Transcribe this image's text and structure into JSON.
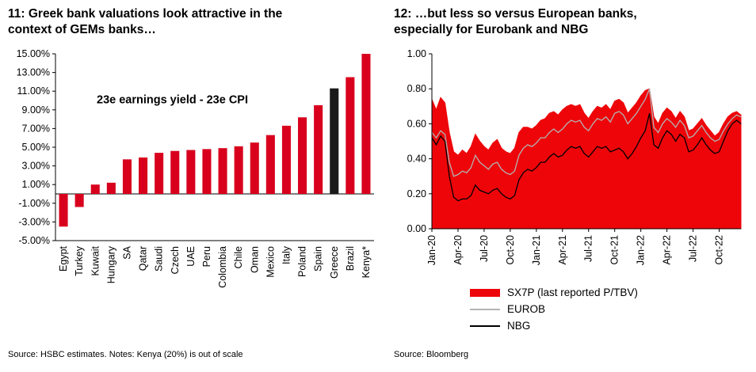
{
  "left_panel": {
    "title_lines": [
      "11: Greek bank valuations look attractive in the",
      "context of GEMs banks…"
    ],
    "source": "Source: HSBC estimates. Notes: Kenya (20%) is out of scale"
  },
  "right_panel": {
    "title_lines": [
      "12: …but less so versus European banks,",
      "especially for Eurobank and NBG"
    ],
    "source": "Source: Bloomberg",
    "legend": [
      {
        "label": "SX7P (last reported P/TBV)",
        "color": "#ee0509",
        "style": "area"
      },
      {
        "label": "EUROB",
        "color": "#b3b3b3",
        "style": "line"
      },
      {
        "label": "NBG",
        "color": "#000000",
        "style": "line"
      }
    ]
  },
  "chart_data": [
    {
      "type": "bar",
      "title": "11: Greek bank valuations look attractive in the context of GEMs banks…",
      "annotation": "23e earnings yield - 23e CPI",
      "categories": [
        "Egypt",
        "Turkey",
        "Kuwait",
        "Hungary",
        "SA",
        "Qatar",
        "Saudi",
        "Czech",
        "UAE",
        "Peru",
        "Colombia",
        "Chile",
        "Oman",
        "Mexico",
        "Italy",
        "Poland",
        "Spain",
        "Greece",
        "Brazil",
        "Kenya*"
      ],
      "values": [
        -3.5,
        -1.4,
        1.0,
        1.2,
        3.7,
        3.9,
        4.4,
        4.6,
        4.7,
        4.8,
        4.9,
        5.1,
        5.5,
        6.3,
        7.3,
        8.2,
        9.5,
        11.3,
        12.5,
        15.0
      ],
      "highlight_category": "Greece",
      "bar_color": "#d8001d",
      "highlight_color": "#1a1a1a",
      "ylim": [
        -5,
        15
      ],
      "ytick_values": [
        15,
        13,
        11,
        9,
        7,
        5,
        3,
        1,
        -1,
        -3,
        -5
      ],
      "yticks": [
        "15.00%",
        "13.00%",
        "11.00%",
        "9.00%",
        "7.00%",
        "5.00%",
        "3.00%",
        "1.00%",
        "-1.00%",
        "-3.00%",
        "-5.00%"
      ],
      "grid": false,
      "legend_position": "none"
    },
    {
      "type": "area",
      "title": "12: …but less so versus European banks, especially for Eurobank and NBG",
      "ylim": [
        0,
        1
      ],
      "ytick_values": [
        1.0,
        0.8,
        0.6,
        0.4,
        0.2,
        0.0
      ],
      "yticks": [
        "1.00",
        "0.80",
        "0.60",
        "0.40",
        "0.20",
        "0.00"
      ],
      "x_ticks": [
        "Jan-20",
        "Apr-20",
        "Jul-20",
        "Oct-20",
        "Jan-21",
        "Apr-21",
        "Jul-21",
        "Oct-21",
        "Jan-22",
        "Apr-22",
        "Jul-22",
        "Oct-22"
      ],
      "xtick_indices": [
        0,
        6,
        12,
        18,
        24,
        30,
        36,
        42,
        48,
        54,
        60,
        66
      ],
      "grid": false,
      "legend_position": "bottom",
      "series": [
        {
          "name": "SX7P (last reported P/TBV)",
          "style": "area",
          "color": "#ee0509",
          "values": [
            0.74,
            0.68,
            0.75,
            0.72,
            0.55,
            0.44,
            0.42,
            0.45,
            0.43,
            0.47,
            0.54,
            0.5,
            0.47,
            0.45,
            0.49,
            0.51,
            0.46,
            0.44,
            0.43,
            0.46,
            0.55,
            0.58,
            0.58,
            0.57,
            0.59,
            0.62,
            0.63,
            0.66,
            0.67,
            0.65,
            0.68,
            0.7,
            0.71,
            0.7,
            0.71,
            0.66,
            0.63,
            0.67,
            0.7,
            0.69,
            0.71,
            0.68,
            0.73,
            0.74,
            0.72,
            0.66,
            0.69,
            0.72,
            0.76,
            0.79,
            0.8,
            0.64,
            0.6,
            0.66,
            0.69,
            0.67,
            0.63,
            0.67,
            0.64,
            0.56,
            0.57,
            0.6,
            0.63,
            0.59,
            0.56,
            0.53,
            0.55,
            0.6,
            0.64,
            0.66,
            0.67,
            0.65
          ]
        },
        {
          "name": "EUROB",
          "style": "line",
          "color": "#b3b3b3",
          "values": [
            0.55,
            0.52,
            0.56,
            0.54,
            0.38,
            0.3,
            0.31,
            0.33,
            0.32,
            0.35,
            0.42,
            0.38,
            0.36,
            0.34,
            0.37,
            0.38,
            0.34,
            0.32,
            0.31,
            0.33,
            0.42,
            0.46,
            0.48,
            0.47,
            0.49,
            0.52,
            0.52,
            0.55,
            0.57,
            0.55,
            0.57,
            0.6,
            0.62,
            0.61,
            0.62,
            0.58,
            0.56,
            0.6,
            0.63,
            0.62,
            0.64,
            0.61,
            0.66,
            0.67,
            0.65,
            0.6,
            0.63,
            0.66,
            0.7,
            0.74,
            0.8,
            0.58,
            0.55,
            0.6,
            0.63,
            0.61,
            0.58,
            0.62,
            0.59,
            0.52,
            0.53,
            0.56,
            0.59,
            0.55,
            0.52,
            0.5,
            0.51,
            0.56,
            0.6,
            0.63,
            0.65,
            0.64
          ]
        },
        {
          "name": "NBG",
          "style": "line",
          "color": "#000000",
          "values": [
            0.52,
            0.48,
            0.53,
            0.5,
            0.3,
            0.18,
            0.16,
            0.17,
            0.17,
            0.19,
            0.25,
            0.22,
            0.21,
            0.2,
            0.22,
            0.23,
            0.2,
            0.18,
            0.17,
            0.19,
            0.28,
            0.32,
            0.34,
            0.33,
            0.35,
            0.38,
            0.38,
            0.41,
            0.43,
            0.41,
            0.42,
            0.45,
            0.47,
            0.46,
            0.47,
            0.43,
            0.41,
            0.44,
            0.47,
            0.46,
            0.47,
            0.44,
            0.45,
            0.46,
            0.44,
            0.4,
            0.43,
            0.47,
            0.52,
            0.56,
            0.66,
            0.48,
            0.46,
            0.52,
            0.56,
            0.54,
            0.5,
            0.54,
            0.52,
            0.44,
            0.45,
            0.48,
            0.52,
            0.48,
            0.45,
            0.43,
            0.44,
            0.5,
            0.56,
            0.6,
            0.62,
            0.6
          ]
        }
      ]
    }
  ]
}
